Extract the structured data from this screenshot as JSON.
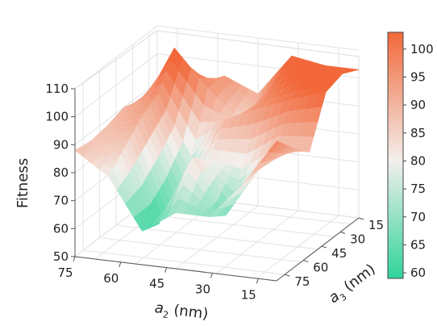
{
  "chart_data": {
    "type": "surface3d",
    "zlabel": "Fitness",
    "xlabel_var": "a",
    "xlabel_sub": "2",
    "xlabel_unit": " (nm)",
    "ylabel_var": "a",
    "ylabel_sub": "3",
    "ylabel_unit": " (nm)",
    "x_ticks": [
      "75",
      "60",
      "45",
      "30",
      "15"
    ],
    "y_ticks": [
      "15",
      "30",
      "45",
      "60",
      "75"
    ],
    "z_ticks": [
      "50",
      "60",
      "70",
      "80",
      "90",
      "100",
      "110"
    ],
    "x_values_nm": [
      75,
      60,
      45,
      30,
      15
    ],
    "y_values_nm": [
      15,
      30,
      45,
      60,
      75
    ],
    "zlim": [
      50,
      110
    ],
    "colorbar": {
      "ticks": [
        "60",
        "65",
        "70",
        "75",
        "80",
        "85",
        "90",
        "95",
        "100"
      ],
      "range": [
        59,
        103
      ],
      "low_color": "#2fd49a",
      "mid_color": "#f3efec",
      "high_color": "#f2683a"
    },
    "surface": {
      "rows_note": "rows ordered from a3=75 (front) to a3=15 (back); columns from a2=75 to a2=15",
      "z": [
        [
          88,
          80,
          62,
          70,
          70,
          83,
          100
        ],
        [
          87,
          86,
          60,
          85,
          66,
          84,
          93
        ],
        [
          88,
          92,
          65,
          80,
          78,
          87,
          87
        ],
        [
          90,
          96,
          75,
          90,
          95,
          100,
          104
        ],
        [
          85,
          108,
          95,
          84,
          100,
          108,
          106
        ],
        [
          84,
          90,
          95,
          90,
          105,
          103,
          103
        ]
      ]
    }
  }
}
